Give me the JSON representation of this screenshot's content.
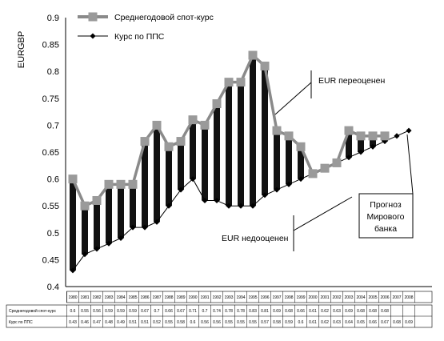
{
  "chart_data": {
    "type": "line",
    "ylabel": "EURGBP",
    "ylim": [
      0.4,
      0.9
    ],
    "yticks": [
      "0.9",
      "0.85",
      "0.8",
      "0.75",
      "0.7",
      "0.65",
      "0.6",
      "0.55",
      "0.5",
      "0.45",
      "0.4"
    ],
    "x": [
      "1980",
      "1981",
      "1982",
      "1983",
      "1984",
      "1985",
      "1986",
      "1987",
      "1988",
      "1989",
      "1990",
      "1991",
      "1992",
      "1993",
      "1994",
      "1995",
      "1996",
      "1997",
      "1998",
      "1999",
      "2000",
      "2001",
      "2002",
      "2003",
      "2004",
      "2005",
      "2006",
      "2007",
      "2008"
    ],
    "series": [
      {
        "name": "Среднегодовой спот-курс",
        "color": "#999999",
        "values": [
          0.6,
          0.55,
          0.56,
          0.59,
          0.59,
          0.59,
          0.67,
          0.7,
          0.66,
          0.67,
          0.71,
          0.7,
          0.74,
          0.78,
          0.78,
          0.83,
          0.81,
          0.69,
          0.68,
          0.66,
          0.61,
          0.62,
          0.63,
          0.69,
          0.68,
          0.68,
          0.68,
          null,
          null
        ]
      },
      {
        "name": "Курс по ППС",
        "color": "#000000",
        "values": [
          0.43,
          0.46,
          0.47,
          0.48,
          0.49,
          0.51,
          0.51,
          0.52,
          0.55,
          0.58,
          0.6,
          0.56,
          0.56,
          0.55,
          0.55,
          0.55,
          0.57,
          0.58,
          0.59,
          0.6,
          0.61,
          0.62,
          0.63,
          0.64,
          0.65,
          0.66,
          0.67,
          0.68,
          0.69
        ]
      }
    ],
    "table": {
      "x_labels": [
        "1980",
        "1981",
        "1982",
        "1983",
        "1984",
        "1985",
        "1986",
        "1987",
        "1988",
        "1989",
        "1990",
        "1991",
        "1992",
        "1993",
        "1994",
        "1995",
        "1996",
        "1997",
        "1998",
        "1999",
        "2000",
        "2001",
        "2002",
        "2003",
        "2004",
        "2005",
        "2006",
        "2007",
        "2008"
      ],
      "rows": [
        {
          "label": "Среднегодовой спот-курс",
          "cells": [
            "0.6",
            "0.55",
            "0.56",
            "0.59",
            "0.59",
            "0.59",
            "0.67",
            "0.7",
            "0.66",
            "0.67",
            "0.71",
            "0.7",
            "0.74",
            "0.78",
            "0.78",
            "0.83",
            "0.81",
            "0.69",
            "0.68",
            "0.66",
            "0.61",
            "0.62",
            "0.63",
            "0.69",
            "0.68",
            "0.68",
            "0.68",
            "",
            ""
          ]
        },
        {
          "label": "Курс по ППС",
          "cells": [
            "0.43",
            "0.46",
            "0.47",
            "0.48",
            "0.49",
            "0.51",
            "0.51",
            "0.52",
            "0.55",
            "0.58",
            "0.6",
            "0.56",
            "0.56",
            "0.55",
            "0.55",
            "0.55",
            "0.57",
            "0.58",
            "0.59",
            "0.6",
            "0.61",
            "0.62",
            "0.63",
            "0.64",
            "0.65",
            "0.66",
            "0.67",
            "0.68",
            "0.69"
          ]
        }
      ]
    },
    "annotations": {
      "over": "EUR переоценен",
      "under": "EUR недооценен",
      "forecast": [
        "Прогноз",
        "Мирового",
        "банка"
      ]
    }
  }
}
